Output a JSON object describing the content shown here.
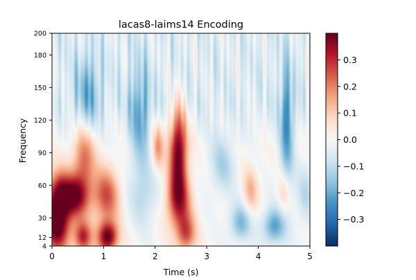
{
  "chart_data": {
    "type": "heatmap",
    "title": "lacas8-laims14 Encoding",
    "xlabel": "Time (s)",
    "ylabel": "Frequency",
    "xlim": [
      0,
      5
    ],
    "ylim": [
      4,
      200
    ],
    "x_ticks": [
      0,
      1,
      2,
      3,
      4,
      5
    ],
    "x_tick_labels": [
      "0",
      "1",
      "2",
      "3",
      "4",
      "5"
    ],
    "y_ticks": [
      4,
      12,
      30,
      60,
      90,
      120,
      150,
      180,
      200
    ],
    "y_tick_labels": [
      "4",
      "12",
      "30",
      "60",
      "90",
      "120",
      "150",
      "180",
      "200"
    ],
    "colorbar": {
      "colormap": "RdBu_r",
      "vmin": -0.4,
      "vmax": 0.4,
      "ticks": [
        -0.3,
        -0.2,
        -0.1,
        0.0,
        0.1,
        0.2,
        0.3
      ],
      "tick_labels": [
        "−0.3",
        "−0.2",
        "−0.1",
        "0.0",
        "0.1",
        "0.2",
        "0.3"
      ]
    },
    "features": {
      "red_blobs": [
        {
          "t": 0.1,
          "f": 20,
          "v": 0.38,
          "st": 0.18,
          "sf": 16
        },
        {
          "t": 0.12,
          "f": 50,
          "v": 0.33,
          "st": 0.16,
          "sf": 16
        },
        {
          "t": 0.45,
          "f": 50,
          "v": 0.36,
          "st": 0.2,
          "sf": 14
        },
        {
          "t": 0.62,
          "f": 85,
          "v": 0.22,
          "st": 0.15,
          "sf": 20
        },
        {
          "t": 1.08,
          "f": 12,
          "v": 0.4,
          "st": 0.14,
          "sf": 10
        },
        {
          "t": 1.05,
          "f": 50,
          "v": 0.25,
          "st": 0.18,
          "sf": 18
        },
        {
          "t": 0.6,
          "f": 12,
          "v": 0.3,
          "st": 0.12,
          "sf": 10
        },
        {
          "t": 2.45,
          "f": 92,
          "v": 0.4,
          "st": 0.12,
          "sf": 28
        },
        {
          "t": 2.45,
          "f": 45,
          "v": 0.28,
          "st": 0.17,
          "sf": 18
        },
        {
          "t": 2.6,
          "f": 15,
          "v": 0.24,
          "st": 0.13,
          "sf": 12
        },
        {
          "t": 2.05,
          "f": 95,
          "v": 0.18,
          "st": 0.08,
          "sf": 15
        },
        {
          "t": 3.85,
          "f": 55,
          "v": 0.13,
          "st": 0.1,
          "sf": 15
        },
        {
          "t": 4.5,
          "f": 52,
          "v": 0.12,
          "st": 0.08,
          "sf": 14
        }
      ],
      "blue_blobs": [
        {
          "t": 0.7,
          "f": 145,
          "v": -0.15,
          "st": 0.18,
          "sf": 25
        },
        {
          "t": 1.7,
          "f": 120,
          "v": -0.18,
          "st": 0.15,
          "sf": 35
        },
        {
          "t": 1.8,
          "f": 50,
          "v": -0.1,
          "st": 0.2,
          "sf": 20
        },
        {
          "t": 3.65,
          "f": 25,
          "v": -0.18,
          "st": 0.15,
          "sf": 12
        },
        {
          "t": 4.3,
          "f": 22,
          "v": -0.22,
          "st": 0.16,
          "sf": 12
        },
        {
          "t": 4.55,
          "f": 110,
          "v": -0.22,
          "st": 0.1,
          "sf": 40
        },
        {
          "t": 3.3,
          "f": 80,
          "v": -0.12,
          "st": 0.18,
          "sf": 20
        },
        {
          "t": 4.9,
          "f": 50,
          "v": -0.1,
          "st": 0.12,
          "sf": 20
        }
      ]
    }
  }
}
